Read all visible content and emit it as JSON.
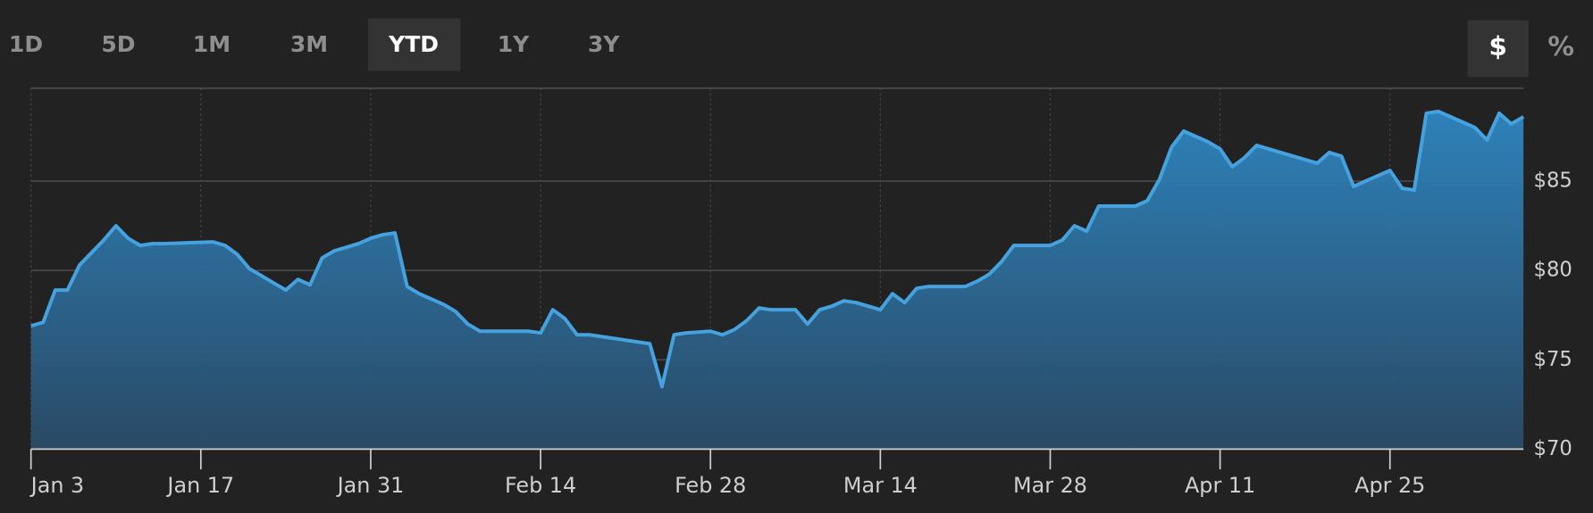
{
  "range_buttons": [
    {
      "label": "1D",
      "selected": false
    },
    {
      "label": "5D",
      "selected": false
    },
    {
      "label": "1M",
      "selected": false
    },
    {
      "label": "3M",
      "selected": false
    },
    {
      "label": "YTD",
      "selected": true
    },
    {
      "label": "1Y",
      "selected": false
    },
    {
      "label": "3Y",
      "selected": false
    }
  ],
  "unit_buttons": [
    {
      "label": "$",
      "selected": true
    },
    {
      "label": "%",
      "selected": false
    }
  ],
  "chart_data": {
    "type": "area",
    "x": [
      "Jan 3",
      "Jan 4",
      "Jan 5",
      "Jan 6",
      "Jan 7",
      "Jan 8",
      "Jan 9",
      "Jan 10",
      "Jan 11",
      "Jan 12",
      "Jan 13",
      "Jan 14",
      "Jan 18",
      "Jan 19",
      "Jan 20",
      "Jan 21",
      "Jan 22",
      "Jan 23",
      "Jan 24",
      "Jan 25",
      "Jan 26",
      "Jan 27",
      "Jan 28",
      "Jan 29",
      "Jan 30",
      "Jan 31",
      "Feb 1",
      "Feb 2",
      "Feb 3",
      "Feb 4",
      "Feb 5",
      "Feb 6",
      "Feb 7",
      "Feb 8",
      "Feb 9",
      "Feb 10",
      "Feb 11",
      "Feb 12",
      "Feb 13",
      "Feb 14",
      "Feb 15",
      "Feb 16",
      "Feb 17",
      "Feb 18",
      "Feb 23",
      "Feb 24",
      "Feb 25",
      "Feb 26",
      "Feb 28",
      "Mar 1",
      "Mar 2",
      "Mar 3",
      "Mar 4",
      "Mar 5",
      "Mar 7",
      "Mar 8",
      "Mar 9",
      "Mar 10",
      "Mar 11",
      "Mar 12",
      "Mar 13",
      "Mar 14",
      "Mar 15",
      "Mar 16",
      "Mar 17",
      "Mar 18",
      "Mar 19",
      "Mar 21",
      "Mar 22",
      "Mar 23",
      "Mar 24",
      "Mar 25",
      "Mar 26",
      "Mar 28",
      "Mar 29",
      "Mar 30",
      "Mar 31",
      "Apr 1",
      "Apr 2",
      "Apr 4",
      "Apr 5",
      "Apr 6",
      "Apr 7",
      "Apr 8",
      "Apr 9",
      "Apr 10",
      "Apr 11",
      "Apr 12",
      "Apr 13",
      "Apr 14",
      "Apr 19",
      "Apr 20",
      "Apr 21",
      "Apr 22",
      "Apr 23",
      "Apr 25",
      "Apr 26",
      "Apr 27",
      "Apr 28",
      "Apr 29",
      "May 2",
      "May 3",
      "May 4",
      "May 5",
      "May 6"
    ],
    "values": [
      76.9,
      77.1,
      78.9,
      78.9,
      80.3,
      81.0,
      81.7,
      82.5,
      81.8,
      81.4,
      81.5,
      81.5,
      81.6,
      81.4,
      80.9,
      80.1,
      79.7,
      79.3,
      78.9,
      79.5,
      79.2,
      80.7,
      81.1,
      81.3,
      81.5,
      81.8,
      82.0,
      82.1,
      79.1,
      78.7,
      78.4,
      78.1,
      77.7,
      77.0,
      76.6,
      76.6,
      76.6,
      76.6,
      76.6,
      76.5,
      77.8,
      77.3,
      76.4,
      76.4,
      75.9,
      73.5,
      76.4,
      76.5,
      76.6,
      76.4,
      76.7,
      77.2,
      77.9,
      77.8,
      77.8,
      77.0,
      77.8,
      78.0,
      78.3,
      78.2,
      78.0,
      77.8,
      78.7,
      78.2,
      79.0,
      79.1,
      79.1,
      79.1,
      79.4,
      79.8,
      80.5,
      81.4,
      81.4,
      81.4,
      81.7,
      82.5,
      82.2,
      83.6,
      83.6,
      83.6,
      83.9,
      85.1,
      86.9,
      87.8,
      87.5,
      87.2,
      86.8,
      85.8,
      86.3,
      87.0,
      86.0,
      86.6,
      86.4,
      84.7,
      85.0,
      85.6,
      84.6,
      84.5,
      88.8,
      88.9,
      88.0,
      87.3,
      88.8,
      88.2,
      88.6
    ],
    "color": "#45a2de",
    "xlim": [
      "Jan 3",
      "May 6"
    ],
    "xticks": [
      "Jan 3",
      "Jan 17",
      "Jan 31",
      "Feb 14",
      "Feb 28",
      "Mar 14",
      "Mar 28",
      "Apr 11",
      "Apr 25"
    ],
    "ylim": [
      70,
      90.2
    ],
    "yticks": [
      {
        "value": 70,
        "label": "$70"
      },
      {
        "value": 75,
        "label": "$75"
      },
      {
        "value": 80,
        "label": "$80"
      },
      {
        "value": 85,
        "label": "$85"
      }
    ],
    "grid": true
  }
}
